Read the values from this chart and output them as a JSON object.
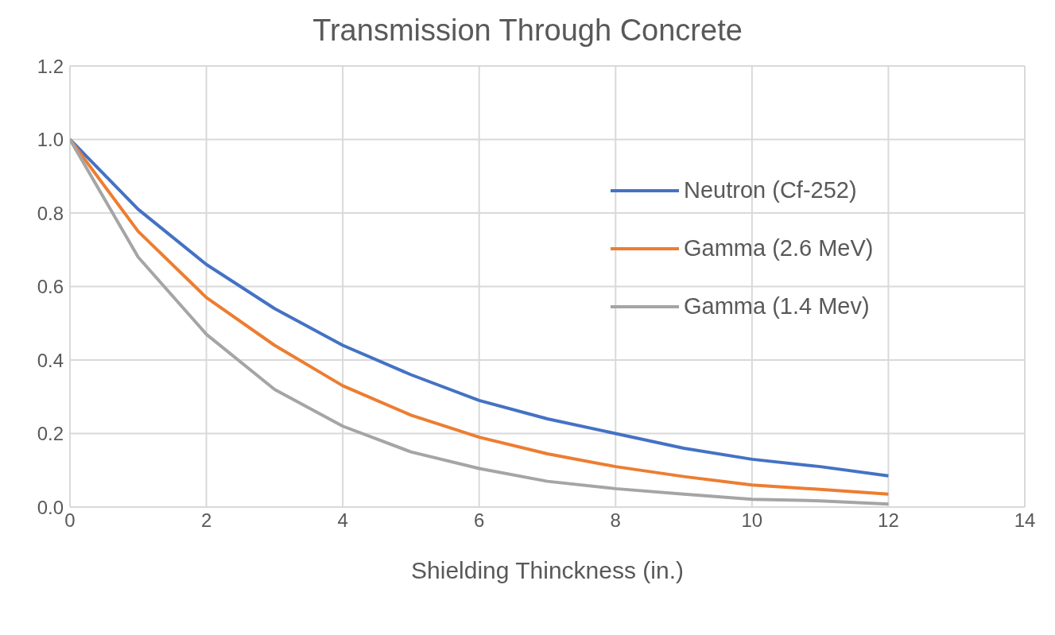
{
  "chart_data": {
    "type": "line",
    "title": "Transmission Through Concrete",
    "xlabel": "Shielding Thinckness (in.)",
    "x": [
      0,
      1,
      2,
      3,
      4,
      5,
      6,
      7,
      8,
      9,
      10,
      11,
      12
    ],
    "series": [
      {
        "name": "Neutron (Cf-252)",
        "color": "#4472c4",
        "values": [
          1.0,
          0.81,
          0.66,
          0.54,
          0.44,
          0.36,
          0.29,
          0.24,
          0.2,
          0.16,
          0.13,
          0.11,
          0.085
        ]
      },
      {
        "name": "Gamma (2.6 MeV)",
        "color": "#ed7d31",
        "values": [
          1.0,
          0.75,
          0.57,
          0.44,
          0.33,
          0.25,
          0.19,
          0.145,
          0.11,
          0.083,
          0.06,
          0.048,
          0.035
        ]
      },
      {
        "name": "Gamma (1.4 Mev)",
        "color": "#a5a5a5",
        "values": [
          1.0,
          0.68,
          0.47,
          0.32,
          0.22,
          0.15,
          0.105,
          0.07,
          0.05,
          0.035,
          0.021,
          0.017,
          0.008
        ]
      }
    ],
    "xlim": [
      0,
      14
    ],
    "xticks": [
      0,
      2,
      4,
      6,
      8,
      10,
      12,
      14
    ],
    "ylim": [
      0,
      1.2
    ],
    "yticks": [
      {
        "value": 0,
        "label": "0.0"
      },
      {
        "value": 0.2,
        "label": "0.2"
      },
      {
        "value": 0.4,
        "label": "0.4"
      },
      {
        "value": 0.6,
        "label": "0.6"
      },
      {
        "value": 0.8,
        "label": "0.8"
      },
      {
        "value": 1.0,
        "label": "1.0"
      },
      {
        "value": 1.2,
        "label": "1.2"
      }
    ],
    "grid": true,
    "legend": "right",
    "marker": "none",
    "line_style": "solid"
  }
}
